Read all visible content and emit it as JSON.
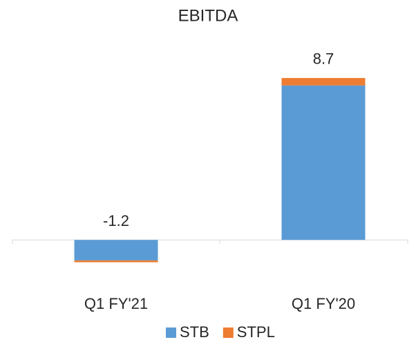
{
  "chart_data": {
    "type": "stacked_bar",
    "title": "EBITDA",
    "categories": [
      "Q1 FY'21",
      "Q1 FY'20"
    ],
    "series": [
      {
        "name": "STB",
        "color": "#5b9bd5",
        "values": [
          -1.1,
          8.3
        ]
      },
      {
        "name": "STPL",
        "color": "#ed7d31",
        "values": [
          -0.1,
          0.4
        ]
      }
    ],
    "totals": [
      -1.2,
      8.7
    ],
    "ylim": [
      -2.7,
      10.7
    ],
    "legend": "bottom"
  }
}
